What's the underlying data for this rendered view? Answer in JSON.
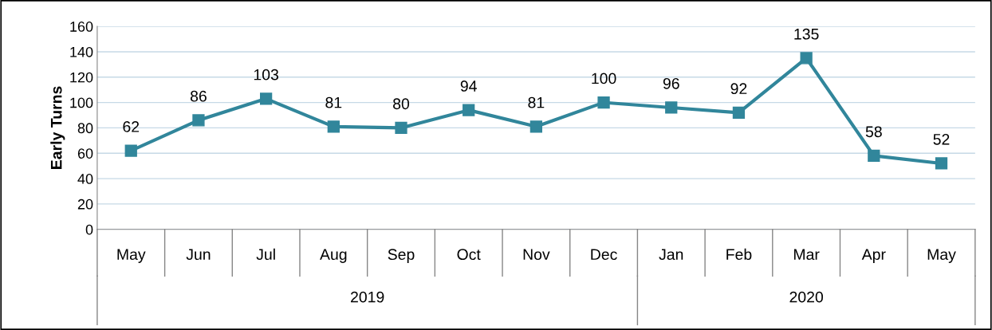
{
  "chart_data": {
    "type": "line",
    "ylabel": "Early Turns",
    "categories": [
      "May",
      "Jun",
      "Jul",
      "Aug",
      "Sep",
      "Oct",
      "Nov",
      "Dec",
      "Jan",
      "Feb",
      "Mar",
      "Apr",
      "May"
    ],
    "series": [
      {
        "color": "#31869b",
        "values": [
          62,
          86,
          103,
          81,
          80,
          94,
          81,
          100,
          96,
          92,
          135,
          58,
          52
        ]
      }
    ],
    "ylim": [
      0,
      160
    ],
    "yticks": [
      0,
      20,
      40,
      60,
      80,
      100,
      120,
      140,
      160
    ],
    "grid": "y",
    "marker": "square",
    "line_style": "solid",
    "data_labels": true,
    "legend": false,
    "annotations": [
      "2019",
      "2020"
    ]
  }
}
